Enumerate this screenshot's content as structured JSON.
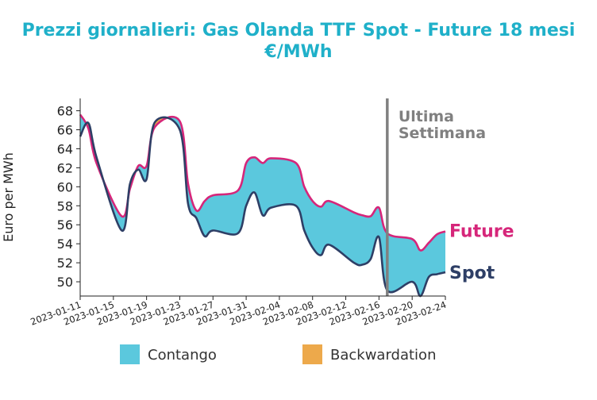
{
  "title_line1": "Prezzi giornalieri: Gas Olanda TTF Spot - Future 18 mesi",
  "title_line2": "€/MWh",
  "chart_data": {
    "type": "area",
    "title": "Prezzi giornalieri: Gas Olanda TTF Spot - Future 18 mesi €/MWh",
    "ylabel": "Euro per MWh",
    "xlabel": "",
    "ylim": [
      48.5,
      69.3
    ],
    "yticks": [
      50,
      52,
      54,
      56,
      58,
      60,
      62,
      64,
      66,
      68
    ],
    "x_ticks": [
      "2023-01-11",
      "2023-01-15",
      "2023-01-19",
      "2023-01-23",
      "2023-01-27",
      "2023-01-31",
      "2023-02-04",
      "2023-02-08",
      "2023-02-12",
      "2023-02-16",
      "2023-02-20",
      "2023-02-24"
    ],
    "x": [
      "2023-01-11",
      "2023-01-12",
      "2023-01-13",
      "2023-01-16",
      "2023-01-17",
      "2023-01-18",
      "2023-01-19",
      "2023-01-20",
      "2023-01-23",
      "2023-01-24",
      "2023-01-25",
      "2023-01-26",
      "2023-01-27",
      "2023-01-30",
      "2023-01-31",
      "2023-02-01",
      "2023-02-02",
      "2023-02-03",
      "2023-02-06",
      "2023-02-07",
      "2023-02-08",
      "2023-02-09",
      "2023-02-10",
      "2023-02-13",
      "2023-02-14",
      "2023-02-15",
      "2023-02-16",
      "2023-02-17",
      "2023-02-20",
      "2023-02-21",
      "2023-02-22",
      "2023-02-23",
      "2023-02-24"
    ],
    "series": [
      {
        "name": "Spot",
        "color": "#2e3f66",
        "values": [
          65.3,
          66.7,
          63.0,
          55.4,
          60.3,
          61.8,
          60.8,
          66.8,
          66.0,
          58.2,
          56.7,
          54.8,
          55.4,
          55.1,
          58.0,
          59.4,
          57.0,
          57.8,
          58.0,
          55.4,
          53.6,
          52.8,
          53.9,
          52.0,
          51.8,
          52.4,
          54.7,
          49.1,
          50.0,
          48.5,
          50.5,
          50.8,
          51.0
        ]
      },
      {
        "name": "Future",
        "color": "#d6267a",
        "values": [
          67.6,
          66.1,
          62.4,
          56.9,
          59.8,
          62.2,
          62.2,
          66.3,
          66.9,
          60.3,
          57.5,
          58.5,
          59.1,
          59.6,
          62.5,
          63.1,
          62.5,
          63.0,
          62.5,
          60.0,
          58.5,
          57.9,
          58.5,
          57.3,
          57.0,
          56.9,
          57.8,
          55.1,
          54.5,
          53.3,
          54.1,
          55.0,
          55.3
        ]
      }
    ],
    "fill_legend": [
      {
        "label": "Contango",
        "color": "#5bc8dd"
      },
      {
        "label": "Backwardation",
        "color": "#eda94b"
      }
    ],
    "annotation": "Ultima Settimana",
    "annotation_date": "2023-02-17",
    "grid": false
  }
}
